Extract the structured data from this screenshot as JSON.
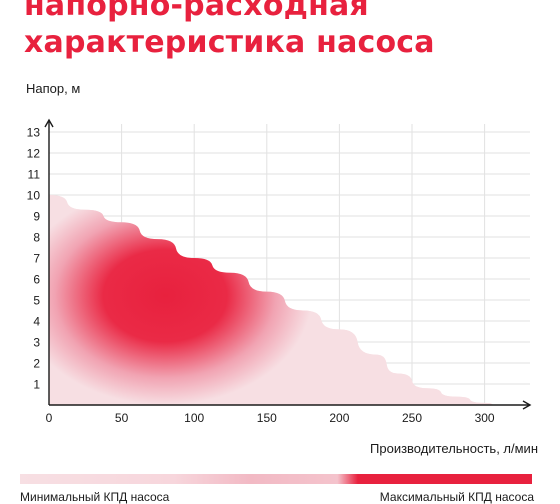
{
  "title_lines": [
    "напорно-расходная",
    "характеристика насоса"
  ],
  "colors": {
    "accent": "#e8213e",
    "light": "#f7dfe3",
    "axis": "#1b1b1b",
    "grid": "#e2e2e2"
  },
  "legend": {
    "min_label": "Минимальный КПД насоса",
    "max_label": "Максимальный КПД насоса"
  },
  "chart_data": {
    "type": "area",
    "title": "напорно-расходная характеристика насоса",
    "xlabel": "Производительность, л/мин",
    "ylabel": "Напор, м",
    "xlim": [
      0,
      330
    ],
    "ylim": [
      0,
      13
    ],
    "x_ticks": [
      0,
      50,
      100,
      150,
      200,
      250,
      300
    ],
    "y_ticks": [
      1,
      2,
      3,
      4,
      5,
      6,
      7,
      8,
      9,
      10,
      11,
      12,
      13
    ],
    "grid": true,
    "series": [
      {
        "x": [
          0,
          25,
          50,
          75,
          100,
          125,
          150,
          175,
          200,
          225,
          240,
          260,
          280,
          300,
          310
        ],
        "y": [
          10,
          9.3,
          8.7,
          7.9,
          7.0,
          6.3,
          5.4,
          4.5,
          3.6,
          2.4,
          1.5,
          0.8,
          0.4,
          0.1,
          0
        ],
        "color_scale": "efficiency"
      }
    ],
    "efficiency_peak": {
      "x": 80,
      "y": 5.2
    }
  }
}
